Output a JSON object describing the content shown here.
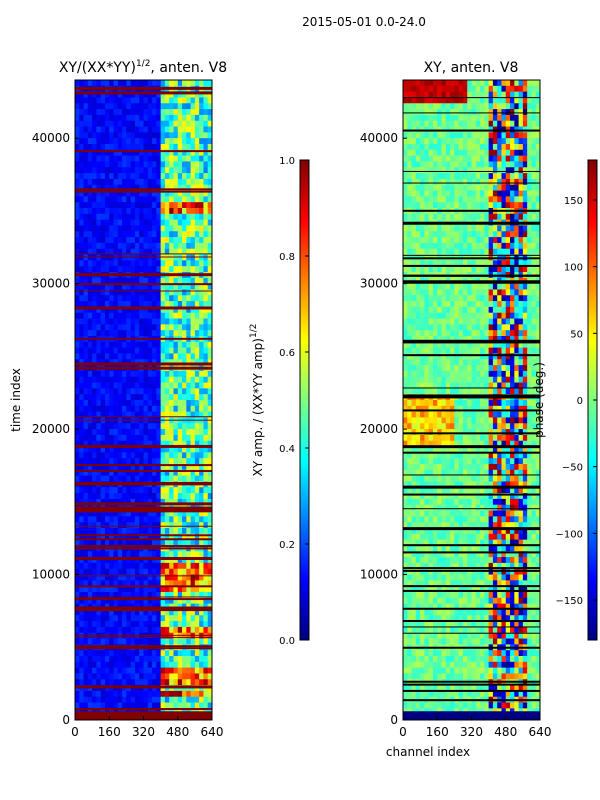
{
  "figure": {
    "suptitle": "2015-05-01 0.0-24.0"
  },
  "chart_data": [
    {
      "type": "heatmap",
      "title": "XY/(XX*YY)^(1/2), anten. V8",
      "title_main": "XY/(XX*YY)",
      "title_sup": "1/2",
      "title_tail": ", anten. V8",
      "xlabel": "",
      "ylabel": "time index",
      "xlim": [
        0,
        640
      ],
      "ylim": [
        0,
        44000
      ],
      "xticks": [
        0,
        160,
        320,
        480,
        640
      ],
      "yticks": [
        0,
        10000,
        20000,
        30000,
        40000
      ],
      "colormap": "jet",
      "description_hint": "mostly low amplitude (dark blue) for channels 0-400; bright cyan/yellow/red bands at channels ~400-640; red flagged horizontal rows",
      "high_channel_start": 400,
      "bright_bands_time": [
        [
          34800,
          35500
        ],
        [
          9000,
          10800
        ],
        [
          5800,
          6500
        ],
        [
          2600,
          3400
        ],
        [
          1500,
          2000
        ]
      ],
      "flag_row_color": "#800000",
      "colorbar": {
        "label": "XY amp. / (XX*YY amp)^(1/2)",
        "label_main": "XY amp. / (XX*YY amp)",
        "label_sup": "1/2",
        "vmin": 0.0,
        "vmax": 1.0,
        "ticks": [
          "0.0",
          "0.2",
          "0.4",
          "0.6",
          "0.8",
          "1.0"
        ]
      }
    },
    {
      "type": "heatmap",
      "title": "XY, anten. V8",
      "xlabel": "channel index",
      "ylabel": "",
      "xlim": [
        0,
        640
      ],
      "ylim": [
        0,
        44000
      ],
      "xticks": [
        0,
        160,
        320,
        480,
        640
      ],
      "yticks": [
        0,
        10000,
        20000,
        30000,
        40000
      ],
      "colormap": "jet",
      "description_hint": "mostly phase near 0 (green/cyan); noisy red/blue patches at channels ~390-580; black flagged horizontal rows",
      "noisy_channel_range": [
        390,
        580
      ],
      "flag_row_color": "#000000",
      "colorbar": {
        "label": "phase (deg.)",
        "vmin": -180,
        "vmax": 180,
        "ticks": [
          "-150",
          "-100",
          "-50",
          "0",
          "50",
          "100",
          "150"
        ]
      }
    }
  ]
}
